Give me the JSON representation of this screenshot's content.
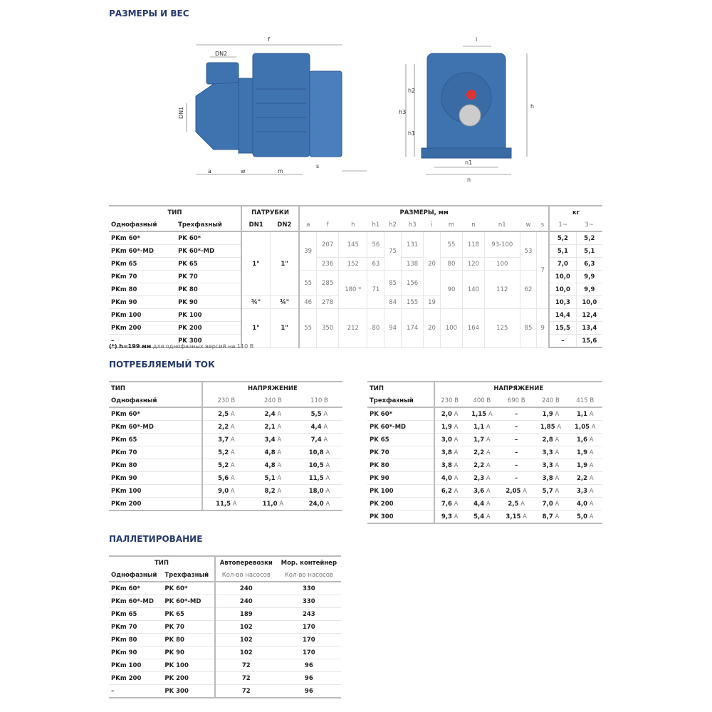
{
  "sections": {
    "dimensions": "РАЗМЕРЫ И ВЕС",
    "current": "ПОТРЕБЛЯЕМЫЙ ТОК",
    "pallet": "ПАЛЛЕТИРОВАНИЕ"
  },
  "drawing": {
    "labels": {
      "f": "f",
      "dn2": "DN2",
      "dn1": "DN1",
      "a": "a",
      "w": "w",
      "m": "m",
      "s": "s",
      "i": "i",
      "h": "h",
      "h1": "h1",
      "h2": "h2",
      "h3": "h3",
      "n": "n",
      "n1": "n1"
    },
    "color": "#3f73b0"
  },
  "dim_table": {
    "head": {
      "type": "ТИП",
      "ports": "ПАТРУБКИ",
      "sizes": "РАЗМЕРЫ, мм",
      "kg": "кг",
      "single": "Однофазный",
      "three": "Трехфазный",
      "cols": [
        "DN1",
        "DN2",
        "a",
        "f",
        "h",
        "h1",
        "h2",
        "h3",
        "i",
        "m",
        "n",
        "n1",
        "w",
        "s"
      ],
      "kg_cols": [
        "1~",
        "3~"
      ]
    },
    "rows": [
      {
        "single": "PKm 60*",
        "three": "PK 60*",
        "kg1": "5,2",
        "kg3": "5,2"
      },
      {
        "single": "PKm 60*-MD",
        "three": "PK 60*-MD",
        "kg1": "5,1",
        "kg3": "5,1"
      },
      {
        "single": "PKm 65",
        "three": "PK 65",
        "kg1": "7,0",
        "kg3": "6,3"
      },
      {
        "single": "PKm 70",
        "three": "PK 70",
        "kg1": "10,0",
        "kg3": "9,9"
      },
      {
        "single": "PKm 80",
        "three": "PK 80",
        "kg1": "10,0",
        "kg3": "9,9"
      },
      {
        "single": "PKm 90",
        "three": "PK 90",
        "kg1": "10,3",
        "kg3": "10,0"
      },
      {
        "single": "PKm 100",
        "three": "PK 100",
        "kg1": "14,4",
        "kg3": "12,4"
      },
      {
        "single": "PKm 200",
        "three": "PK 200",
        "kg1": "15,5",
        "kg3": "13,4"
      },
      {
        "single": "–",
        "three": "PK 300",
        "kg1": "–",
        "kg3": "15,6"
      }
    ],
    "columns": [
      [
        {
          "v": "1\"",
          "span": 5
        },
        {
          "v": "¾\"",
          "span": 1
        },
        {
          "v": "1\"",
          "span": 3
        }
      ],
      [
        {
          "v": "1\"",
          "span": 5
        },
        {
          "v": "¾\"",
          "span": 1
        },
        {
          "v": "1\"",
          "span": 3
        }
      ],
      [
        {
          "v": "39",
          "span": 3
        },
        {
          "v": "55",
          "span": 2
        },
        {
          "v": "46",
          "span": 1
        },
        {
          "v": "55",
          "span": 3
        }
      ],
      [
        {
          "v": "207",
          "span": 2
        },
        {
          "v": "236",
          "span": 1
        },
        {
          "v": "285",
          "span": 2
        },
        {
          "v": "278",
          "span": 1
        },
        {
          "v": "350",
          "span": 3
        }
      ],
      [
        {
          "v": "145",
          "span": 2
        },
        {
          "v": "152",
          "span": 1
        },
        {
          "v": "180 *",
          "span": 3
        },
        {
          "v": "212",
          "span": 3
        }
      ],
      [
        {
          "v": "56",
          "span": 2
        },
        {
          "v": "63",
          "span": 1
        },
        {
          "v": "71",
          "span": 3
        },
        {
          "v": "80",
          "span": 3
        }
      ],
      [
        {
          "v": "75",
          "span": 3
        },
        {
          "v": "85",
          "span": 2
        },
        {
          "v": "84",
          "span": 1
        },
        {
          "v": "94",
          "span": 3
        }
      ],
      [
        {
          "v": "131",
          "span": 2
        },
        {
          "v": "138",
          "span": 1
        },
        {
          "v": "156",
          "span": 2
        },
        {
          "v": "155",
          "span": 1
        },
        {
          "v": "174",
          "span": 3
        }
      ],
      [
        {
          "v": "20",
          "span": 5
        },
        {
          "v": "19",
          "span": 1
        },
        {
          "v": "20",
          "span": 3
        }
      ],
      [
        {
          "v": "55",
          "span": 2
        },
        {
          "v": "80",
          "span": 1
        },
        {
          "v": "90",
          "span": 3
        },
        {
          "v": "100",
          "span": 3
        }
      ],
      [
        {
          "v": "118",
          "span": 2
        },
        {
          "v": "120",
          "span": 1
        },
        {
          "v": "140",
          "span": 3
        },
        {
          "v": "164",
          "span": 3
        }
      ],
      [
        {
          "v": "93-100",
          "span": 2
        },
        {
          "v": "100",
          "span": 1
        },
        {
          "v": "112",
          "span": 3
        },
        {
          "v": "125",
          "span": 3
        }
      ],
      [
        {
          "v": "53",
          "span": 3
        },
        {
          "v": "62",
          "span": 3
        },
        {
          "v": "85",
          "span": 3
        }
      ],
      [
        {
          "v": "7",
          "span": 6
        },
        {
          "v": "9",
          "span": 3
        }
      ]
    ],
    "note_bold": "(*) h=199 мм",
    "note": " для однофазных версий на 110 В"
  },
  "current_single": {
    "type": "ТИП",
    "voltage": "НАПРЯЖЕНИЕ",
    "sub": "Однофазный",
    "volts": [
      "230 В",
      "240 В",
      "110 В"
    ],
    "rows": [
      [
        "PKm 60*",
        "2,5",
        "2,4",
        "5,5"
      ],
      [
        "PKm 60*-MD",
        "2,2",
        "2,1",
        "4,4"
      ],
      [
        "PKm 65",
        "3,7",
        "3,4",
        "7,4"
      ],
      [
        "PKm 70",
        "5,2",
        "4,8",
        "10,8"
      ],
      [
        "PKm 80",
        "5,2",
        "4,8",
        "10,5"
      ],
      [
        "PKm 90",
        "5,6",
        "5,1",
        "11,5"
      ],
      [
        "PKm 100",
        "9,0",
        "8,2",
        "18,0"
      ],
      [
        "PKm 200",
        "11,5",
        "11,0",
        "24,0"
      ]
    ]
  },
  "current_three": {
    "type": "ТИП",
    "voltage": "НАПРЯЖЕНИЕ",
    "sub": "Трехфазный",
    "volts": [
      "230 В",
      "400 В",
      "690 В",
      "240 В",
      "415 В"
    ],
    "rows": [
      [
        "PK 60*",
        "2,0",
        "1,15",
        "–",
        "1,9",
        "1,1"
      ],
      [
        "PK 60*-MD",
        "1,9",
        "1,1",
        "–",
        "1,85",
        "1,05"
      ],
      [
        "PK 65",
        "3,0",
        "1,7",
        "–",
        "2,8",
        "1,6"
      ],
      [
        "PK 70",
        "3,8",
        "2,2",
        "–",
        "3,3",
        "1,9"
      ],
      [
        "PK 80",
        "3,8",
        "2,2",
        "–",
        "3,3",
        "1,9"
      ],
      [
        "PK 90",
        "4,0",
        "2,3",
        "–",
        "3,8",
        "2,2"
      ],
      [
        "PK 100",
        "6,2",
        "3,6",
        "2,05",
        "5,7",
        "3,3"
      ],
      [
        "PK 200",
        "7,6",
        "4,4",
        "2,5",
        "7,0",
        "4,0"
      ],
      [
        "PK 300",
        "9,3",
        "5,4",
        "3,15",
        "8,7",
        "5,0"
      ]
    ]
  },
  "unit": "A",
  "pallet": {
    "type": "ТИП",
    "single": "Однофазный",
    "three": "Трехфазный",
    "truck": "Автоперевозки",
    "sea": "Мор. контейнер",
    "qty": "Кол-во насосов",
    "rows": [
      [
        "PKm 60*",
        "PK 60*",
        "240",
        "330"
      ],
      [
        "PKm 60*-MD",
        "PK 60*-MD",
        "240",
        "330"
      ],
      [
        "PKm 65",
        "PK 65",
        "189",
        "243"
      ],
      [
        "PKm 70",
        "PK 70",
        "102",
        "170"
      ],
      [
        "PKm 80",
        "PK 80",
        "102",
        "170"
      ],
      [
        "PKm 90",
        "PK 90",
        "102",
        "170"
      ],
      [
        "PKm 100",
        "PK 100",
        "72",
        "96"
      ],
      [
        "PKm 200",
        "PK 200",
        "72",
        "96"
      ],
      [
        "–",
        "PK 300",
        "72",
        "96"
      ]
    ]
  }
}
